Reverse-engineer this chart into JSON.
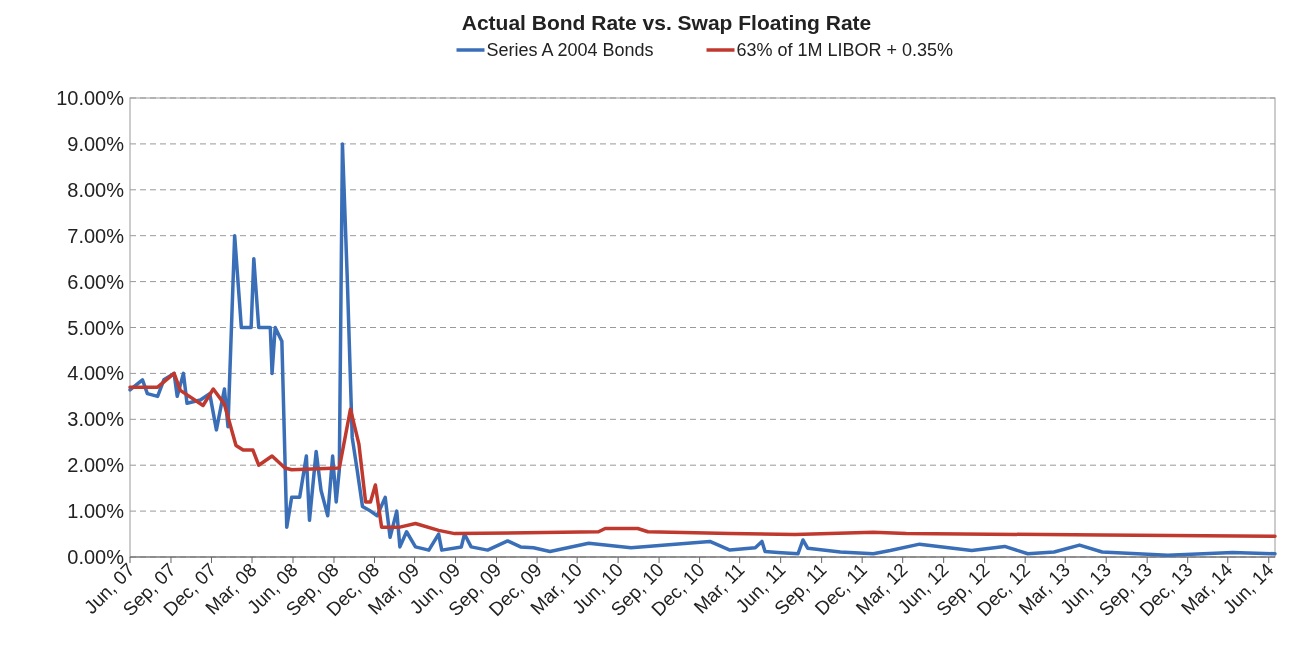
{
  "chart_data": {
    "type": "line",
    "title": "Actual Bond Rate vs. Swap Floating Rate",
    "legend": "top",
    "grid": "y",
    "line_style": "solid",
    "marker": "none",
    "xlim": [
      "2007-06-01",
      "2014-06-15"
    ],
    "xticks": [
      {
        "value": "2007-06-01",
        "label": "Jun, 07"
      },
      {
        "value": "2007-09-01",
        "label": "Sep, 07"
      },
      {
        "value": "2007-12-01",
        "label": "Dec, 07"
      },
      {
        "value": "2008-03-01",
        "label": "Mar, 08"
      },
      {
        "value": "2008-06-01",
        "label": "Jun, 08"
      },
      {
        "value": "2008-09-01",
        "label": "Sep, 08"
      },
      {
        "value": "2008-12-01",
        "label": "Dec, 08"
      },
      {
        "value": "2009-03-01",
        "label": "Mar, 09"
      },
      {
        "value": "2009-06-01",
        "label": "Jun, 09"
      },
      {
        "value": "2009-09-01",
        "label": "Sep, 09"
      },
      {
        "value": "2009-12-01",
        "label": "Dec, 09"
      },
      {
        "value": "2010-03-01",
        "label": "Mar, 10"
      },
      {
        "value": "2010-06-01",
        "label": "Jun, 10"
      },
      {
        "value": "2010-09-01",
        "label": "Sep, 10"
      },
      {
        "value": "2010-12-01",
        "label": "Dec, 10"
      },
      {
        "value": "2011-03-01",
        "label": "Mar, 11"
      },
      {
        "value": "2011-06-01",
        "label": "Jun, 11"
      },
      {
        "value": "2011-09-01",
        "label": "Sep, 11"
      },
      {
        "value": "2011-12-01",
        "label": "Dec, 11"
      },
      {
        "value": "2012-03-01",
        "label": "Mar, 12"
      },
      {
        "value": "2012-06-01",
        "label": "Jun, 12"
      },
      {
        "value": "2012-09-01",
        "label": "Sep, 12"
      },
      {
        "value": "2012-12-01",
        "label": "Dec, 12"
      },
      {
        "value": "2013-03-01",
        "label": "Mar, 13"
      },
      {
        "value": "2013-06-01",
        "label": "Jun, 13"
      },
      {
        "value": "2013-09-01",
        "label": "Sep, 13"
      },
      {
        "value": "2013-12-01",
        "label": "Dec, 13"
      },
      {
        "value": "2014-03-01",
        "label": "Mar, 14"
      },
      {
        "value": "2014-06-01",
        "label": "Jun, 14"
      }
    ],
    "ylim": [
      0,
      10
    ],
    "yticks": [
      {
        "value": 0,
        "label": "0.00%"
      },
      {
        "value": 1,
        "label": "1.00%"
      },
      {
        "value": 2,
        "label": "2.00%"
      },
      {
        "value": 3,
        "label": "3.00%"
      },
      {
        "value": 4,
        "label": "4.00%"
      },
      {
        "value": 5,
        "label": "5.00%"
      },
      {
        "value": 6,
        "label": "6.00%"
      },
      {
        "value": 7,
        "label": "7.00%"
      },
      {
        "value": 8,
        "label": "8.00%"
      },
      {
        "value": 9,
        "label": "9.00%"
      },
      {
        "value": 10,
        "label": "10.00%"
      }
    ],
    "series": [
      {
        "name": "Series A 2004 Bonds",
        "color": "#3a6fb8",
        "x": [
          "2007-06-01",
          "2007-06-29",
          "2007-07-10",
          "2007-08-02",
          "2007-08-16",
          "2007-09-08",
          "2007-09-15",
          "2007-09-29",
          "2007-10-07",
          "2007-11-06",
          "2007-11-27",
          "2007-12-12",
          "2007-12-30",
          "2008-01-07",
          "2008-01-22",
          "2008-02-06",
          "2008-02-28",
          "2008-03-05",
          "2008-03-16",
          "2008-04-11",
          "2008-04-15",
          "2008-04-22",
          "2008-05-07",
          "2008-05-18",
          "2008-05-29",
          "2008-06-16",
          "2008-07-01",
          "2008-07-08",
          "2008-07-23",
          "2008-08-03",
          "2008-08-18",
          "2008-08-29",
          "2008-09-06",
          "2008-09-13",
          "2008-09-20",
          "2008-10-01",
          "2008-10-12",
          "2008-10-23",
          "2008-11-04",
          "2008-11-22",
          "2008-12-07",
          "2008-12-25",
          "2009-01-05",
          "2009-01-20",
          "2009-01-27",
          "2009-02-11",
          "2009-03-03",
          "2009-04-02",
          "2009-04-24",
          "2009-05-01",
          "2009-06-14",
          "2009-06-21",
          "2009-07-06",
          "2009-08-12",
          "2009-09-26",
          "2009-10-25",
          "2009-11-23",
          "2009-12-30",
          "2010-03-27",
          "2010-06-30",
          "2010-12-24",
          "2011-02-07",
          "2011-04-05",
          "2011-04-20",
          "2011-04-27",
          "2011-05-26",
          "2011-07-10",
          "2011-07-21",
          "2011-08-01",
          "2011-10-13",
          "2011-12-26",
          "2012-02-02",
          "2012-04-08",
          "2012-08-03",
          "2012-10-16",
          "2012-12-07",
          "2013-02-04",
          "2013-04-02",
          "2013-05-23",
          "2013-10-17",
          "2014-03-12",
          "2014-06-15"
        ],
        "values": [
          3.64,
          3.86,
          3.56,
          3.5,
          3.86,
          4.0,
          3.5,
          4.0,
          3.35,
          3.42,
          3.56,
          2.77,
          3.66,
          2.84,
          7.0,
          5.0,
          5.0,
          6.5,
          5.0,
          5.0,
          4.0,
          5.0,
          4.7,
          0.65,
          1.3,
          1.3,
          2.2,
          0.8,
          2.3,
          1.45,
          0.9,
          2.2,
          1.2,
          1.9,
          9.0,
          6.03,
          2.6,
          1.9,
          1.1,
          1.0,
          0.9,
          1.3,
          0.43,
          1.0,
          0.22,
          0.55,
          0.22,
          0.15,
          0.5,
          0.15,
          0.22,
          0.5,
          0.22,
          0.15,
          0.35,
          0.22,
          0.2,
          0.12,
          0.3,
          0.2,
          0.34,
          0.15,
          0.2,
          0.34,
          0.12,
          0.1,
          0.07,
          0.37,
          0.19,
          0.11,
          0.07,
          0.14,
          0.28,
          0.14,
          0.23,
          0.07,
          0.11,
          0.26,
          0.11,
          0.04,
          0.1,
          0.07
        ]
      },
      {
        "name": "63% of 1M LIBOR + 0.35%",
        "color": "#c0392f",
        "x": [
          "2007-06-01",
          "2007-08-02",
          "2007-09-08",
          "2007-09-22",
          "2007-11-12",
          "2007-12-05",
          "2007-12-30",
          "2008-01-25",
          "2008-02-10",
          "2008-03-03",
          "2008-03-16",
          "2008-04-15",
          "2008-05-14",
          "2008-05-29",
          "2008-09-13",
          "2008-10-08",
          "2008-10-27",
          "2008-11-11",
          "2008-11-22",
          "2008-12-03",
          "2008-12-17",
          "2009-01-27",
          "2009-03-03",
          "2009-04-24",
          "2009-05-30",
          "2010-04-18",
          "2010-05-03",
          "2010-07-15",
          "2010-08-07",
          "2011-02-07",
          "2011-07-03",
          "2011-12-26",
          "2012-03-09",
          "2013-05-23",
          "2014-06-15"
        ],
        "values": [
          3.7,
          3.7,
          4.0,
          3.63,
          3.3,
          3.66,
          3.33,
          2.43,
          2.33,
          2.33,
          2.0,
          2.2,
          1.94,
          1.9,
          1.94,
          3.22,
          2.46,
          1.2,
          1.2,
          1.57,
          0.65,
          0.65,
          0.73,
          0.58,
          0.51,
          0.55,
          0.62,
          0.62,
          0.55,
          0.51,
          0.49,
          0.54,
          0.51,
          0.48,
          0.45
        ]
      }
    ]
  }
}
